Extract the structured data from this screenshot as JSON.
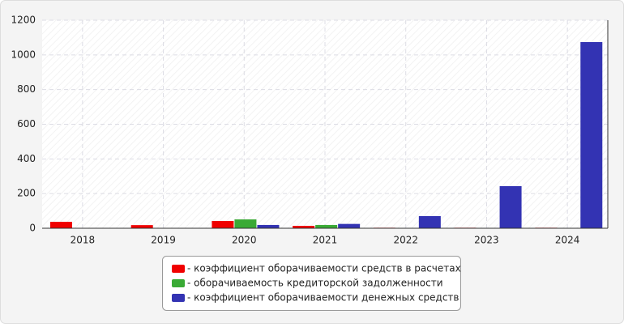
{
  "chart_data": {
    "type": "bar",
    "categories": [
      "2018",
      "2019",
      "2020",
      "2021",
      "2022",
      "2023",
      "2024"
    ],
    "series": [
      {
        "name": "- коэффициент оборачиваемости средств в расчетах",
        "color": "#f00000",
        "values": [
          37,
          18,
          42,
          14,
          3,
          3,
          3
        ]
      },
      {
        "name": "- оборачиваемость кредиторской задолженности",
        "color": "#3aaa35",
        "values": [
          null,
          null,
          51,
          19,
          2,
          2,
          2
        ]
      },
      {
        "name": "- коэффициент оборачиваемости денежных средств",
        "color": "#3333b3",
        "values": [
          null,
          null,
          19,
          25,
          70,
          243,
          1074
        ]
      }
    ],
    "ylim": [
      0,
      1200
    ],
    "yticks": [
      0,
      200,
      400,
      600,
      800,
      1000,
      1200
    ],
    "grid": true
  }
}
